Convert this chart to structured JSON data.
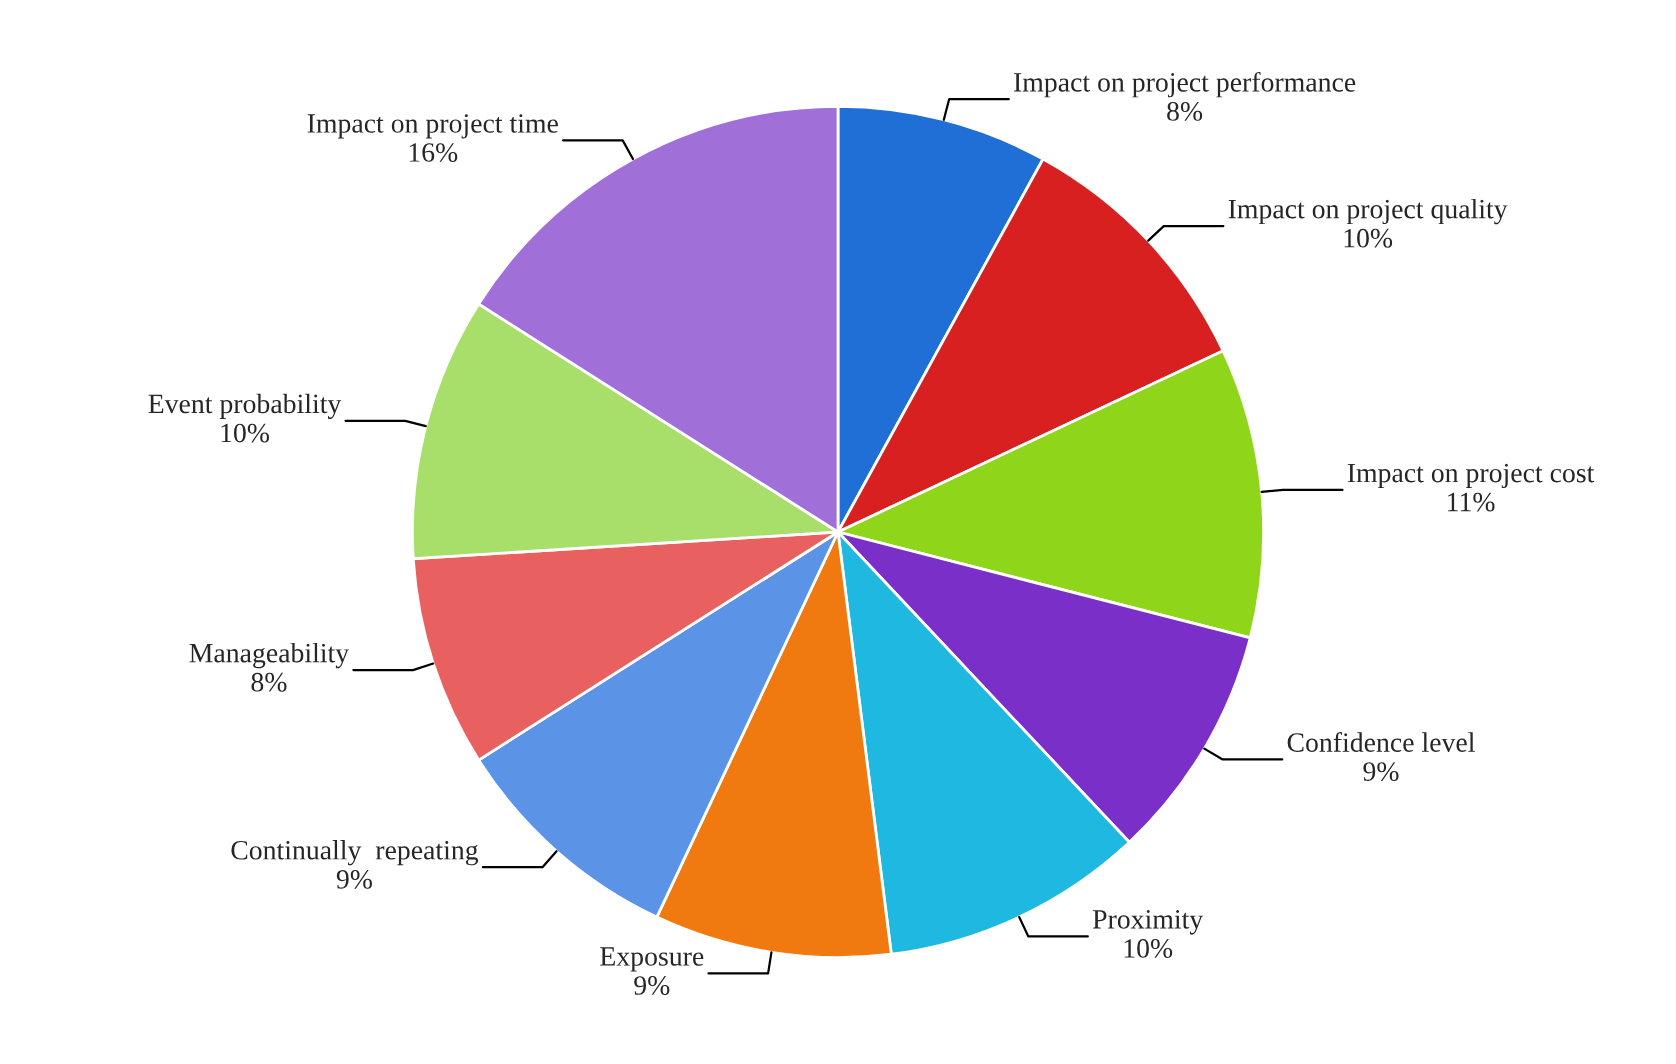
{
  "chart_data": {
    "type": "pie",
    "categories": [
      "Impact on project performance",
      "Impact on project quality",
      "Impact on project cost",
      "Confidence level",
      "Proximity",
      "Exposure",
      "Continually  repeating",
      "Manageability",
      "Event probability",
      "Impact on project time"
    ],
    "values": [
      8,
      10,
      11,
      9,
      10,
      9,
      9,
      8,
      10,
      16
    ],
    "value_labels": [
      "8%",
      "10%",
      "11%",
      "9%",
      "10%",
      "9%",
      "9%",
      "8%",
      "10%",
      "16%"
    ],
    "colors": [
      "#1f6fd6",
      "#d92020",
      "#8fd61a",
      "#7a2fc9",
      "#1fb8e0",
      "#f07a10",
      "#5b94e6",
      "#e86060",
      "#a8de6a",
      "#a070d8"
    ]
  }
}
